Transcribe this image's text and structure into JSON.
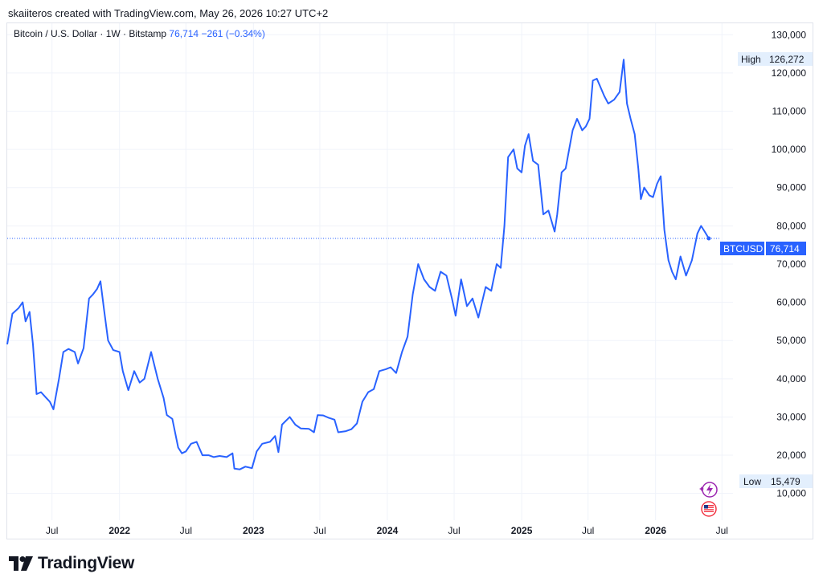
{
  "header": {
    "created_by": "skaiiteros created with TradingView.com, May 26, 2026 10:27 UTC+2"
  },
  "legend": {
    "symbol": "Bitcoin / U.S. Dollar · 1W · Bitstamp",
    "price": "76,714",
    "change": "−261 (−0.34%)"
  },
  "price_label": {
    "ticker": "BTCUSD",
    "value": "76,714"
  },
  "high_label": {
    "label": "High",
    "value": "126,272"
  },
  "low_label": {
    "label": "Low",
    "value": "15,479"
  },
  "footer": {
    "brand": "TradingView"
  },
  "colors": {
    "line": "#2962ff",
    "grid": "#f0f3fa",
    "axis_text": "#131722",
    "label_bg": "#e3effd"
  },
  "chart_data": {
    "type": "line",
    "title": "",
    "xlabel": "",
    "ylabel": "",
    "ylim": [
      3000,
      133000
    ],
    "xlim": [
      "2021-03-01",
      "2026-07-31"
    ],
    "y_ticks": [
      "130,000",
      "120,000",
      "110,000",
      "100,000",
      "90,000",
      "80,000",
      "70,000",
      "60,000",
      "50,000",
      "40,000",
      "30,000",
      "20,000",
      "10,000"
    ],
    "x_ticks": [
      {
        "label": "Jul",
        "date": "2021-07-01"
      },
      {
        "label": "2022",
        "date": "2022-01-01"
      },
      {
        "label": "Jul",
        "date": "2022-07-01"
      },
      {
        "label": "2023",
        "date": "2023-01-01"
      },
      {
        "label": "Jul",
        "date": "2023-07-01"
      },
      {
        "label": "2024",
        "date": "2024-01-01"
      },
      {
        "label": "Jul",
        "date": "2024-07-01"
      },
      {
        "label": "2025",
        "date": "2025-01-01"
      },
      {
        "label": "Jul",
        "date": "2025-07-01"
      },
      {
        "label": "2026",
        "date": "2026-01-01"
      },
      {
        "label": "Jul",
        "date": "2026-07-01"
      }
    ],
    "grid": true,
    "series": [
      {
        "x": [
          "2021-03-01",
          "2021-03-15",
          "2021-04-01",
          "2021-04-12",
          "2021-04-20",
          "2021-05-01",
          "2021-05-10",
          "2021-05-20",
          "2021-06-01",
          "2021-06-15",
          "2021-06-25",
          "2021-07-05",
          "2021-07-20",
          "2021-08-01",
          "2021-08-15",
          "2021-09-01",
          "2021-09-10",
          "2021-09-25",
          "2021-10-10",
          "2021-10-20",
          "2021-11-01",
          "2021-11-10",
          "2021-11-20",
          "2021-12-01",
          "2021-12-15",
          "2022-01-01",
          "2022-01-10",
          "2022-01-25",
          "2022-02-10",
          "2022-02-25",
          "2022-03-10",
          "2022-03-28",
          "2022-04-15",
          "2022-05-01",
          "2022-05-10",
          "2022-05-25",
          "2022-06-10",
          "2022-06-20",
          "2022-07-01",
          "2022-07-15",
          "2022-07-30",
          "2022-08-15",
          "2022-09-01",
          "2022-09-15",
          "2022-10-01",
          "2022-10-20",
          "2022-11-05",
          "2022-11-10",
          "2022-11-25",
          "2022-12-10",
          "2022-12-28",
          "2023-01-10",
          "2023-01-25",
          "2023-02-15",
          "2023-03-01",
          "2023-03-10",
          "2023-03-20",
          "2023-04-10",
          "2023-04-25",
          "2023-05-10",
          "2023-06-01",
          "2023-06-15",
          "2023-06-25",
          "2023-07-10",
          "2023-07-25",
          "2023-08-10",
          "2023-08-20",
          "2023-09-10",
          "2023-09-25",
          "2023-10-10",
          "2023-10-25",
          "2023-11-10",
          "2023-11-25",
          "2023-12-10",
          "2023-12-28",
          "2024-01-10",
          "2024-01-25",
          "2024-02-10",
          "2024-02-25",
          "2024-03-10",
          "2024-03-25",
          "2024-04-10",
          "2024-04-25",
          "2024-05-10",
          "2024-05-25",
          "2024-06-10",
          "2024-06-25",
          "2024-07-05",
          "2024-07-20",
          "2024-08-05",
          "2024-08-20",
          "2024-09-05",
          "2024-09-25",
          "2024-10-10",
          "2024-10-25",
          "2024-11-05",
          "2024-11-15",
          "2024-11-25",
          "2024-12-10",
          "2024-12-20",
          "2025-01-01",
          "2025-01-10",
          "2025-01-20",
          "2025-02-01",
          "2025-02-15",
          "2025-03-01",
          "2025-03-15",
          "2025-04-01",
          "2025-04-08",
          "2025-04-20",
          "2025-05-01",
          "2025-05-20",
          "2025-06-01",
          "2025-06-15",
          "2025-06-25",
          "2025-07-05",
          "2025-07-14",
          "2025-07-25",
          "2025-08-05",
          "2025-08-14",
          "2025-08-25",
          "2025-09-10",
          "2025-09-25",
          "2025-10-06",
          "2025-10-15",
          "2025-10-25",
          "2025-11-05",
          "2025-11-15",
          "2025-11-22",
          "2025-12-01",
          "2025-12-15",
          "2025-12-25",
          "2026-01-05",
          "2026-01-15",
          "2026-01-25",
          "2026-02-05",
          "2026-02-15",
          "2026-02-25",
          "2026-03-10",
          "2026-03-25",
          "2026-04-10",
          "2026-04-25",
          "2026-05-05",
          "2026-05-15",
          "2026-05-26"
        ],
        "y": [
          49000,
          57000,
          58500,
          60000,
          55000,
          57500,
          49000,
          36000,
          36500,
          35000,
          34000,
          32000,
          40000,
          47000,
          47800,
          47000,
          44000,
          48000,
          61000,
          62000,
          63500,
          65500,
          58000,
          50000,
          47500,
          47000,
          42000,
          37000,
          42000,
          39000,
          40000,
          47000,
          40000,
          35000,
          30500,
          29500,
          22000,
          20500,
          21000,
          23000,
          23500,
          20000,
          20000,
          19500,
          19800,
          19500,
          20500,
          16500,
          16300,
          17000,
          16600,
          21000,
          23000,
          23500,
          25000,
          20800,
          28000,
          30000,
          28000,
          27000,
          26900,
          26000,
          30500,
          30400,
          29800,
          29300,
          26000,
          26300,
          26800,
          28300,
          34000,
          36500,
          37300,
          42000,
          42500,
          43000,
          41500,
          47000,
          51000,
          62000,
          70000,
          66000,
          64000,
          63000,
          68000,
          67000,
          61000,
          56500,
          66000,
          59000,
          61000,
          56000,
          64000,
          63000,
          70000,
          69000,
          80000,
          98000,
          100000,
          95000,
          94000,
          101000,
          104000,
          97000,
          96000,
          83000,
          84000,
          78500,
          83000,
          94000,
          95000,
          105000,
          108000,
          105000,
          106000,
          108000,
          118000,
          118500,
          116000,
          114000,
          112000,
          113000,
          115000,
          123500,
          112000,
          108000,
          104000,
          95000,
          87000,
          90000,
          88000,
          87500,
          91000,
          93000,
          79000,
          71000,
          68000,
          66000,
          72000,
          67000,
          71000,
          78000,
          80000,
          78500,
          76714
        ]
      }
    ]
  }
}
